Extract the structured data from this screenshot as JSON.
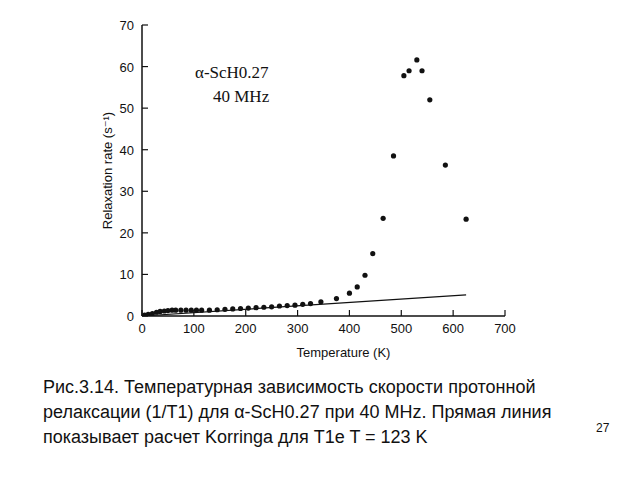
{
  "chart_data": {
    "type": "scatter",
    "x_label": "Temperature (K)",
    "y_label": "Relaxation rate (s⁻¹)",
    "annotations": [
      "α-ScH0.27",
      "40 MHz"
    ],
    "xlim": [
      0,
      700
    ],
    "xticks": [
      0,
      100,
      200,
      300,
      400,
      500,
      600,
      700
    ],
    "ylim": [
      0,
      70
    ],
    "yticks": [
      0,
      10,
      20,
      30,
      40,
      50,
      60,
      70
    ],
    "grid": false,
    "series": [
      {
        "type": "scatter",
        "marker": "circle",
        "color": "#111111",
        "x": [
          5,
          12,
          20,
          28,
          35,
          43,
          50,
          58,
          65,
          75,
          85,
          95,
          105,
          115,
          130,
          145,
          160,
          175,
          190,
          205,
          220,
          235,
          250,
          265,
          280,
          295,
          310,
          325,
          345,
          375,
          400,
          415,
          430,
          445,
          465,
          485,
          505,
          515,
          530,
          540,
          555,
          585,
          625
        ],
        "values": [
          0.2,
          0.4,
          0.6,
          0.9,
          1.1,
          1.2,
          1.3,
          1.4,
          1.4,
          1.4,
          1.4,
          1.4,
          1.4,
          1.4,
          1.4,
          1.5,
          1.6,
          1.7,
          1.8,
          1.9,
          2.0,
          2.1,
          2.2,
          2.4,
          2.5,
          2.6,
          2.8,
          3.0,
          3.4,
          4.2,
          5.5,
          7.0,
          9.8,
          15.0,
          23.5,
          38.5,
          57.8,
          59.0,
          61.6,
          59.0,
          52.0,
          36.3,
          23.3
        ]
      },
      {
        "type": "line",
        "line_style": "solid",
        "color": "#111111",
        "x": [
          0,
          625
        ],
        "values": [
          0,
          5.1
        ]
      }
    ]
  },
  "caption": [
    "Рис.3.14. Температурная зависимость скорости протонной",
    "релаксации (1/T1) для α-ScH0.27 при 40 MHz. Прямая линия",
    "показывает расчет Korringa для T1e T = 123 K"
  ],
  "page_number": "27"
}
